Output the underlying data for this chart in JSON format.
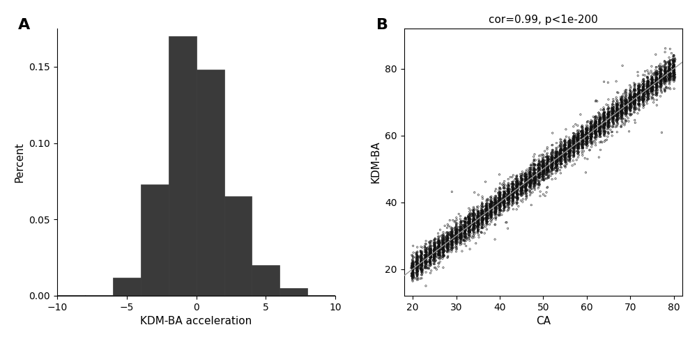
{
  "panel_a": {
    "label": "A",
    "xlabel": "KDM-BA acceleration",
    "ylabel": "Percent",
    "bar_color": "#3a3a3a",
    "bar_edge_color": "#3a3a3a",
    "xlim": [
      -10,
      10
    ],
    "ylim": [
      0,
      0.175
    ],
    "xticks": [
      -10,
      -5,
      0,
      5,
      10
    ],
    "yticks": [
      0.0,
      0.05,
      0.1,
      0.15
    ],
    "bin_edges": [
      -10,
      -8,
      -6,
      -4,
      -2,
      0,
      2,
      4,
      6,
      8,
      10
    ],
    "bin_heights": [
      0.0003,
      0.0003,
      0.012,
      0.073,
      0.17,
      0.148,
      0.065,
      0.02,
      0.005,
      0.0003
    ],
    "bin_width": 2
  },
  "panel_b": {
    "label": "B",
    "xlabel": "CA",
    "ylabel": "KDM-BA",
    "title": "cor=0.99, p<1e-200",
    "xlim": [
      18,
      82
    ],
    "ylim": [
      12,
      92
    ],
    "xticks": [
      20,
      30,
      40,
      50,
      60,
      70,
      80
    ],
    "yticks": [
      20,
      40,
      60,
      80
    ],
    "n_per_age": 120,
    "ca_min": 20,
    "ca_max": 80,
    "slope": 1.0,
    "intercept": 0.0,
    "noise_std": 1.8,
    "marker_edge_color": "#111111",
    "marker_size": 3.0,
    "line_color": "#999999",
    "title_fontsize": 11,
    "label_fontsize": 11
  },
  "background_color": "#ffffff",
  "tick_fontsize": 10,
  "axis_label_fontsize": 11,
  "panel_label_fontsize": 16
}
